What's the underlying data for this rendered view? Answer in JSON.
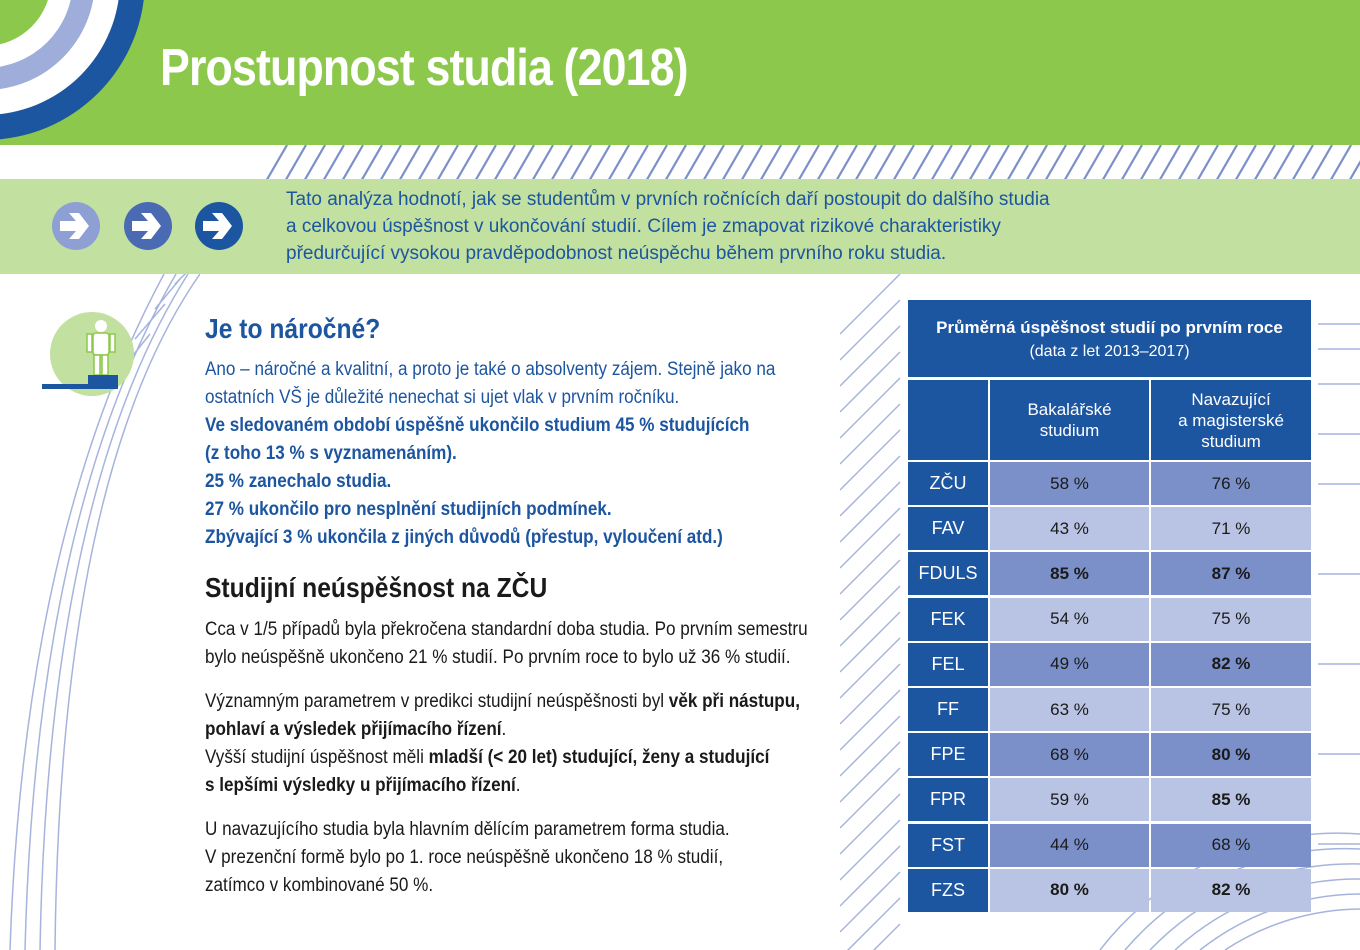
{
  "header": {
    "title": "Prostupnost studia (2018)",
    "bg_color": "#8cc84b",
    "accent_blue": "#1c55a0"
  },
  "intro": {
    "icons": [
      "arrow-right-circle-icon",
      "arrow-right-circle-icon",
      "arrow-right-circle-icon"
    ],
    "lines": [
      "Tato analýza hodnotí, jak se studentům v prvních ročnících daří postoupit do dalšího studia",
      "a celkovou úspěšnost v ukončování studií. Cílem je zmapovat rizikové charakteristiky",
      "předurčující vysokou pravděpodobnost neúspěchu během prvního roku studia."
    ]
  },
  "section1": {
    "icon": "person-on-podium-icon",
    "heading": "Je to náročné?",
    "lines": [
      "Ano – náročné a kvalitní, a proto je také o absolventy zájem. Stejně jako na",
      "ostatních VŠ je důležité nenechat si ujet vlak v prvním ročníku."
    ],
    "bold_lines": [
      "Ve sledovaném období úspěšně ukončilo studium 45 % studujících",
      "(z toho 13 % s vyznamenáním).",
      "25 % zanechalo studia.",
      "27 % ukončilo pro nesplnění studijních podmínek.",
      "Zbývající 3 % ukončila z jiných důvodů (přestup, vyloučení atd.)"
    ]
  },
  "section2": {
    "heading": "Studijní neúspěšnost na ZČU",
    "p1": [
      "Cca v 1/5 případů byla překročena standardní doba studia. Po prvním semestru",
      "bylo neúspěšně ukončeno 21 % studií. Po prvním roce to bylo už 36 % studií."
    ],
    "p2": {
      "l1_a": "Významným parametrem v predikci studijní neúspěšnosti byl ",
      "l1_b": "věk při nástupu,",
      "l2_b": "pohlaví a výsledek přijímacího řízení",
      "l2_a": ".",
      "l3_a": "Vyšší studijní úspěšnost měli ",
      "l3_b": "mladší (< 20 let) studující, ženy a studující",
      "l4_b": "s lepšími výsledky u přijímacího řízení",
      "l4_a": "."
    },
    "p3": [
      "U navazujícího studia byla hlavním dělícím parametrem forma studia.",
      "V prezenční formě bylo po 1. roce neúspěšně ukončeno 18 % studií,",
      "zatímco v kombinované 50 %."
    ]
  },
  "table": {
    "title": "Průměrná úspěšnost studií po prvním roce",
    "subtitle": "(data z let 2013–2017)",
    "col1": [
      "Bakalářské",
      "studium"
    ],
    "col2": [
      "Navazující",
      "a magisterské",
      "studium"
    ],
    "rows": [
      {
        "faculty": "ZČU",
        "bc": "58 %",
        "mgr": "76 %",
        "bc_bold": false,
        "mgr_bold": false
      },
      {
        "faculty": "FAV",
        "bc": "43 %",
        "mgr": "71 %",
        "bc_bold": false,
        "mgr_bold": false
      },
      {
        "faculty": "FDULS",
        "bc": "85 %",
        "mgr": "87 %",
        "bc_bold": true,
        "mgr_bold": true
      },
      {
        "faculty": "FEK",
        "bc": "54 %",
        "mgr": "75 %",
        "bc_bold": false,
        "mgr_bold": false
      },
      {
        "faculty": "FEL",
        "bc": "49 %",
        "mgr": "82 %",
        "bc_bold": false,
        "mgr_bold": true
      },
      {
        "faculty": "FF",
        "bc": "63 %",
        "mgr": "75 %",
        "bc_bold": false,
        "mgr_bold": false
      },
      {
        "faculty": "FPE",
        "bc": "68 %",
        "mgr": "80 %",
        "bc_bold": false,
        "mgr_bold": true
      },
      {
        "faculty": "FPR",
        "bc": "59 %",
        "mgr": "85 %",
        "bc_bold": false,
        "mgr_bold": true
      },
      {
        "faculty": "FST",
        "bc": "44 %",
        "mgr": "68 %",
        "bc_bold": false,
        "mgr_bold": false
      },
      {
        "faculty": "FZS",
        "bc": "80 %",
        "mgr": "82 %",
        "bc_bold": true,
        "mgr_bold": true
      }
    ]
  }
}
